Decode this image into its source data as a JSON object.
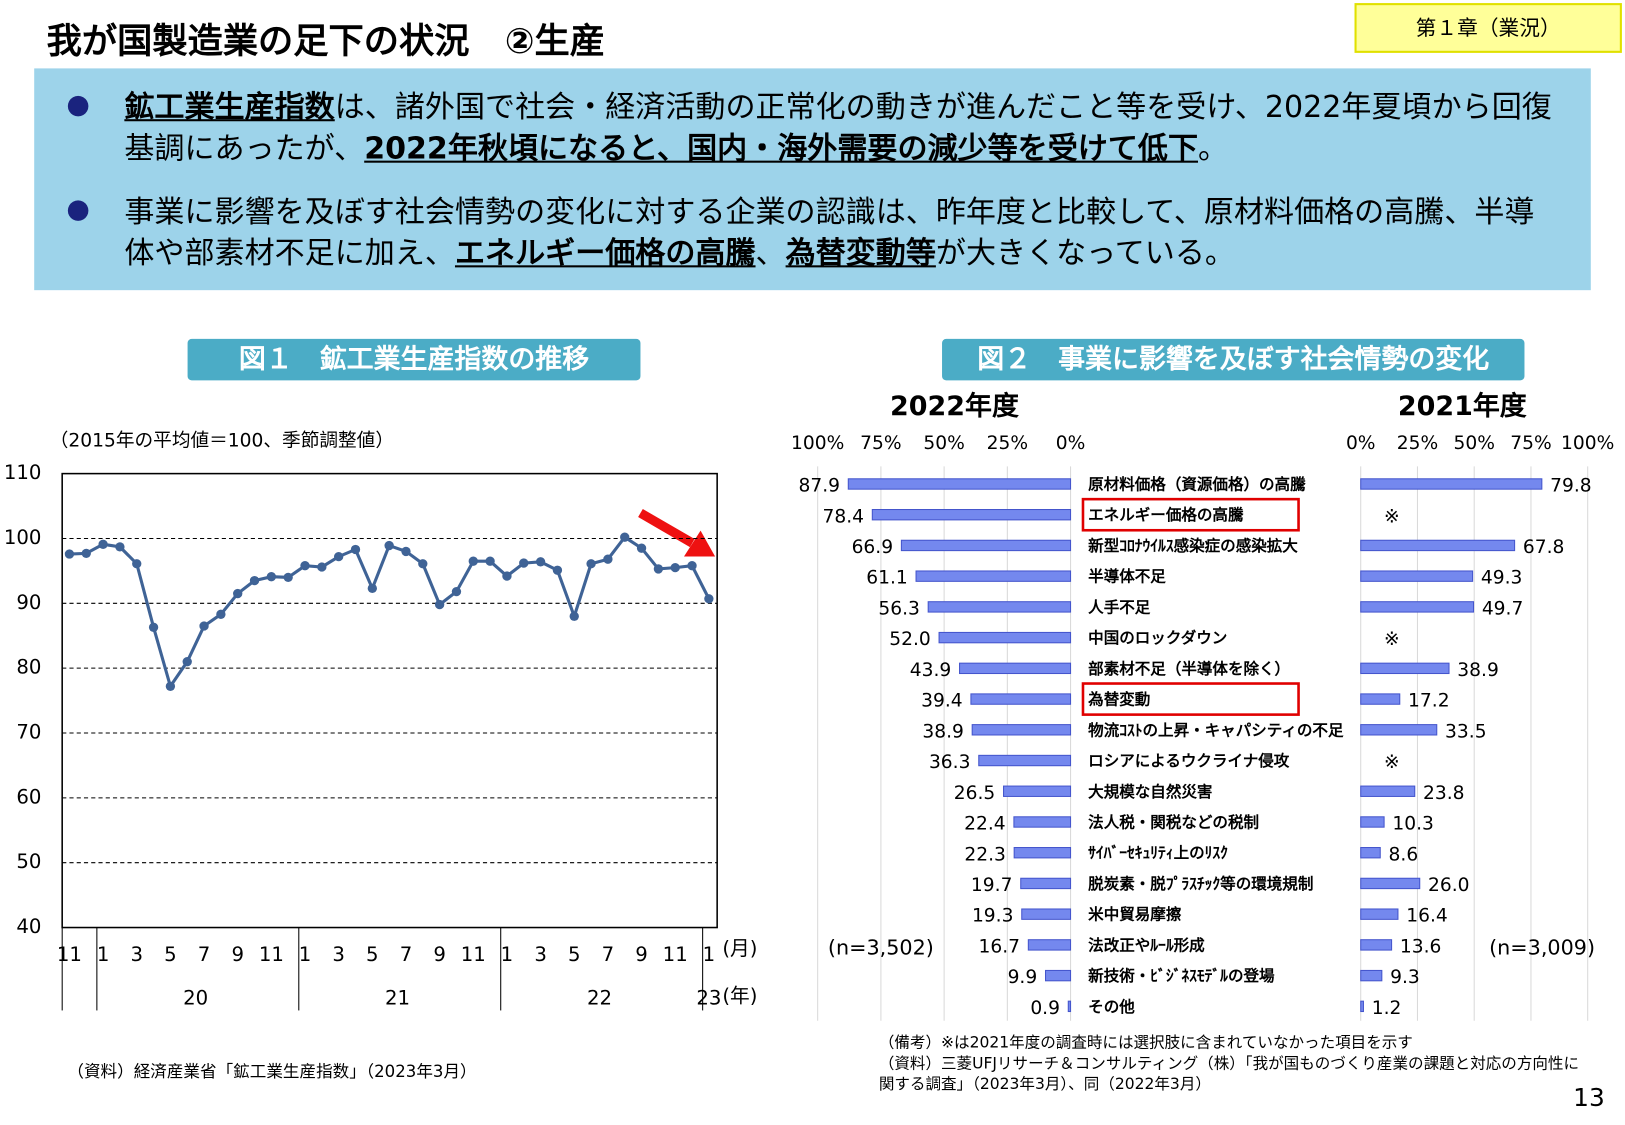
{
  "header": {
    "title": "我が国製造業の足下の状況　②生産",
    "chapter": "第１章（業況）"
  },
  "bullets": [
    [
      {
        "text": "鉱工業生産指数",
        "emphasis": true
      },
      {
        "text": "は、諸外国で社会・経済活動の正常化の動きが進んだこと等を受け、2022年夏頃から回復基調にあったが、",
        "emphasis": false
      },
      {
        "text": "2022年秋頃になると、国内・海外需要の減少等を受けて低下",
        "emphasis": true
      },
      {
        "text": "。",
        "emphasis": false
      }
    ],
    [
      {
        "text": "事業に影響を及ぼす社会情勢の変化に対する企業の認識は、昨年度と比較して、原材料価格の高騰、半導体や部素材不足に加え、",
        "emphasis": false
      },
      {
        "text": "エネルギー価格の高騰",
        "emphasis": true
      },
      {
        "text": "、",
        "emphasis": false
      },
      {
        "text": "為替変動等",
        "emphasis": true
      },
      {
        "text": "が大きくなっている。",
        "emphasis": false
      }
    ]
  ],
  "chart_data": [
    {
      "type": "line",
      "title": "図１　鉱工業生産指数の推移",
      "subtitle": "（2015年の平均値＝100、季節調整値）",
      "categories": [
        "11",
        null,
        "1",
        null,
        "3",
        null,
        "5",
        null,
        "7",
        null,
        "9",
        null,
        "11",
        null,
        "1",
        null,
        "3",
        null,
        "5",
        null,
        "7",
        null,
        "9",
        null,
        "11",
        null,
        "1",
        null,
        "3",
        null,
        "5",
        null,
        "7",
        null,
        "9",
        null,
        "11",
        null,
        "1"
      ],
      "x_unit": "(月)",
      "x_groups": [
        "20",
        "21",
        "22",
        "23"
      ],
      "x_group_unit": "(年)",
      "series": [
        {
          "name": "鉱工業生産指数",
          "color": "#3f6396",
          "values": [
            97.6,
            97.7,
            99.1,
            98.7,
            96.1,
            86.3,
            77.2,
            81.0,
            86.5,
            88.3,
            91.5,
            93.5,
            94.1,
            94.0,
            95.8,
            95.6,
            97.2,
            98.3,
            92.3,
            98.9,
            98.0,
            96.1,
            89.8,
            91.8,
            96.5,
            96.5,
            94.2,
            96.2,
            96.4,
            95.1,
            88.0,
            96.1,
            96.8,
            100.2,
            98.5,
            95.3,
            95.5,
            95.8,
            90.7
          ]
        }
      ],
      "ylim": [
        40,
        110
      ],
      "yticks": [
        40,
        50,
        60,
        70,
        80,
        90,
        100,
        110
      ],
      "grid": true,
      "source": "（資料）経済産業省「鉱工業生産指数」（2023年3月）"
    },
    {
      "type": "bar",
      "orientation": "horizontal",
      "title": "図２　事業に影響を及ぼす社会情勢の変化",
      "categories": [
        "原材料価格（資源価格）の高騰",
        "エネルギー価格の高騰",
        "新型ｺﾛﾅｳｲﾙｽ感染症の感染拡大",
        "半導体不足",
        "人手不足",
        "中国のロックダウン",
        "部素材不足（半導体を除く）",
        "為替変動",
        "物流ｺｽﾄの上昇・キャパシティの不足",
        "ロシアによるウクライナ侵攻",
        "大規模な自然災害",
        "法人税・関税などの税制",
        "ｻｲﾊﾞｰｾｷｭﾘﾃｨ上のﾘｽｸ",
        "脱炭素・脱ﾌﾟﾗｽﾁｯｸ等の環境規制",
        "米中貿易摩擦",
        "法改正やﾙｰﾙ形成",
        "新技術・ﾋﾞｼﾞﾈｽﾓﾃﾞﾙの登場",
        "その他"
      ],
      "series": [
        {
          "name": "2022年度",
          "color": "#7488ee",
          "reversed": true,
          "sample": "(n=3,502)",
          "values": [
            87.9,
            78.4,
            66.9,
            61.1,
            56.3,
            52.0,
            43.9,
            39.4,
            38.9,
            36.3,
            26.5,
            22.4,
            22.3,
            19.7,
            19.3,
            16.7,
            9.9,
            0.9
          ],
          "value_labels": [
            "87.9",
            "78.4",
            "66.9",
            "61.1",
            "56.3",
            "52.0",
            "43.9",
            "39.4",
            "38.9",
            "36.3",
            "26.5",
            "22.4",
            "22.3",
            "19.7",
            "19.3",
            "16.7",
            "9.9",
            "0.9"
          ],
          "xlim": [
            0,
            100
          ],
          "xticks": [
            {
              "value": 100,
              "label": "100%"
            },
            {
              "value": 75,
              "label": "75%"
            },
            {
              "value": 50,
              "label": "50%"
            },
            {
              "value": 25,
              "label": "25%"
            },
            {
              "value": 0,
              "label": "0%"
            }
          ]
        },
        {
          "name": "2021年度",
          "color": "#7488ee",
          "reversed": false,
          "sample": "(n=3,009)",
          "values": [
            79.8,
            null,
            67.8,
            49.3,
            49.7,
            null,
            38.9,
            17.2,
            33.5,
            null,
            23.8,
            10.3,
            8.6,
            26.0,
            16.4,
            13.6,
            9.3,
            1.2
          ],
          "value_labels": [
            "79.8",
            "※",
            "67.8",
            "49.3",
            "49.7",
            "※",
            "38.9",
            "17.2",
            "33.5",
            "※",
            "23.8",
            "10.3",
            "8.6",
            "26.0",
            "16.4",
            "13.6",
            "9.3",
            "1.2"
          ],
          "xlim": [
            0,
            100
          ],
          "xticks": [
            {
              "value": 0,
              "label": "0%"
            },
            {
              "value": 25,
              "label": "25%"
            },
            {
              "value": 50,
              "label": "50%"
            },
            {
              "value": 75,
              "label": "75%"
            },
            {
              "value": 100,
              "label": "100%"
            }
          ]
        }
      ],
      "highlighted": [
        1,
        7
      ],
      "highlight_color": "#e00000",
      "grid": true,
      "notes": [
        "（備考）※は2021年度の調査時には選択肢に含まれていなかった項目を示す",
        "（資料）三菱UFJリサーチ＆コンサルティング（株）「我が国ものづくり産業の課題と対応の方向性に関する調査」（2023年3月）、同（2022年3月）"
      ]
    }
  ],
  "page_number": "13"
}
